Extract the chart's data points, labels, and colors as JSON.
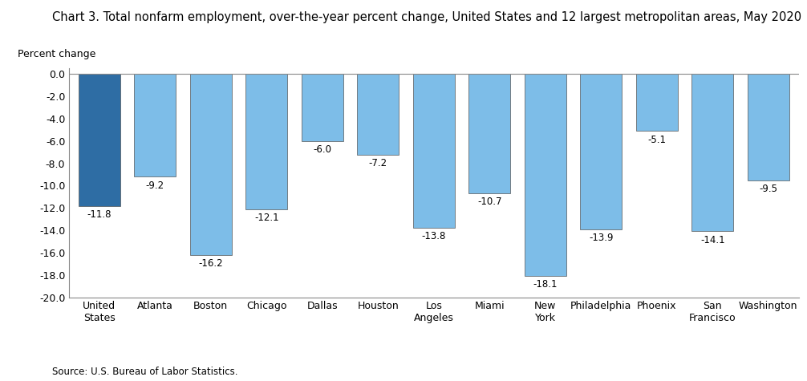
{
  "title": "Chart 3. Total nonfarm employment, over-the-year percent change, United States and 12 largest metropolitan areas, May 2020",
  "ylabel": "Percent change",
  "source": "Source: U.S. Bureau of Labor Statistics.",
  "categories": [
    "United\nStates",
    "Atlanta",
    "Boston",
    "Chicago",
    "Dallas",
    "Houston",
    "Los\nAngeles",
    "Miami",
    "New\nYork",
    "Philadelphia",
    "Phoenix",
    "San\nFrancisco",
    "Washington"
  ],
  "values": [
    -11.8,
    -9.2,
    -16.2,
    -12.1,
    -6.0,
    -7.2,
    -13.8,
    -10.7,
    -18.1,
    -13.9,
    -5.1,
    -14.1,
    -9.5
  ],
  "bar_colors": [
    "#2E6DA4",
    "#7DBDE8",
    "#7DBDE8",
    "#7DBDE8",
    "#7DBDE8",
    "#7DBDE8",
    "#7DBDE8",
    "#7DBDE8",
    "#7DBDE8",
    "#7DBDE8",
    "#7DBDE8",
    "#7DBDE8",
    "#7DBDE8"
  ],
  "edge_color": "#555555",
  "ylim": [
    -20.0,
    0.5
  ],
  "yticks": [
    0.0,
    -2.0,
    -4.0,
    -6.0,
    -8.0,
    -10.0,
    -12.0,
    -14.0,
    -16.0,
    -18.0,
    -20.0
  ],
  "title_fontsize": 10.5,
  "tick_fontsize": 9,
  "bar_label_fontsize": 8.5,
  "source_fontsize": 8.5,
  "background_color": "#FFFFFF"
}
